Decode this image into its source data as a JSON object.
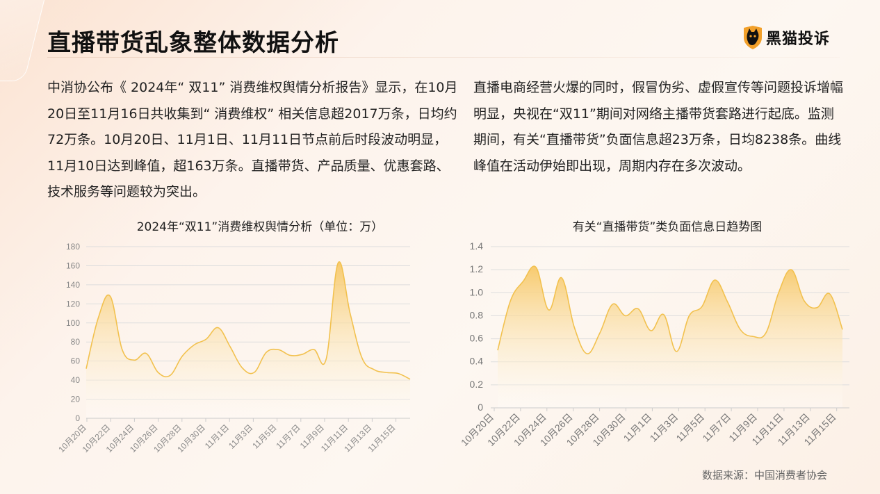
{
  "title": "直播带货乱象整体数据分析",
  "logo": {
    "text": "黑猫投诉",
    "icon": "black-cat-shield-icon"
  },
  "paragraph_left": "中消协公布《 2024年“ 双11” 消费维权舆情分析报告》显示，在10月20日至11月16日共收集到“ 消费维权” 相关信息超2017万条，日均约72万条。10月20日、11月1日、11月11日节点前后时段波动明显，11月10日达到峰值，超163万条。直播带货、产品质量、优惠套路、技术服务等问题较为突出。",
  "paragraph_right": "直播电商经营火爆的同时，假冒伪劣、虚假宣传等问题投诉增幅明显，央视在“双11”期间对网络主播带货套路进行起底。监测期间，有关“直播带货”负面信息超23万条，日均8238条。曲线峰值在活动伊始即出现，周期内存在多次波动。",
  "source": "数据来源：中国消费者协会",
  "colors": {
    "line": "#f2c14e",
    "fill_top": "#f7c867",
    "grid": "#dddddd",
    "title": "#111111"
  },
  "chart_data": [
    {
      "type": "area",
      "title": "2024年“双11”消费维权舆情分析（单位：万）",
      "xlabel": "",
      "ylabel": "",
      "ylim": [
        0,
        180
      ],
      "yticks": [
        0,
        20,
        40,
        60,
        80,
        100,
        120,
        140,
        160,
        180
      ],
      "xtick_labels": [
        "10月20日",
        "10月22日",
        "10月24日",
        "10月26日",
        "10月28日",
        "10月30日",
        "11月1日",
        "11月3日",
        "11月5日",
        "11月7日",
        "11月9日",
        "11月11日",
        "11月13日",
        "11月15日"
      ],
      "x": [
        "10月20日",
        "10月21日",
        "10月22日",
        "10月23日",
        "10月24日",
        "10月25日",
        "10月26日",
        "10月27日",
        "10月28日",
        "10月29日",
        "10月30日",
        "10月31日",
        "11月1日",
        "11月2日",
        "11月3日",
        "11月4日",
        "11月5日",
        "11月6日",
        "11月7日",
        "11月8日",
        "11月9日",
        "11月10日",
        "11月11日",
        "11月12日",
        "11月13日",
        "11月14日",
        "11月15日",
        "11月16日"
      ],
      "values": [
        52,
        105,
        128,
        72,
        61,
        68,
        48,
        45,
        65,
        77,
        83,
        95,
        75,
        53,
        48,
        69,
        72,
        66,
        67,
        72,
        62,
        163,
        110,
        63,
        51,
        48,
        47,
        41
      ],
      "grid": true
    },
    {
      "type": "area",
      "title": "有关“直播带货”类负面信息日趋势图",
      "xlabel": "",
      "ylabel": "",
      "ylim": [
        0,
        1.4
      ],
      "yticks": [
        "0",
        "0.2",
        "0.4",
        "0.6",
        "0.8",
        "1.0",
        "1.2",
        "1.4"
      ],
      "xtick_labels": [
        "10月20日",
        "10月22日",
        "10月24日",
        "10月26日",
        "10月28日",
        "10月30日",
        "11月1日",
        "11月3日",
        "11月5日",
        "11月7日",
        "11月9日",
        "11月11日",
        "11月13日",
        "11月15日"
      ],
      "x": [
        "10月20日",
        "10月21日",
        "10月22日",
        "10月23日",
        "10月24日",
        "10月25日",
        "10月26日",
        "10月27日",
        "10月28日",
        "10月29日",
        "10月30日",
        "10月31日",
        "11月1日",
        "11月2日",
        "11月3日",
        "11月4日",
        "11月5日",
        "11月6日",
        "11月7日",
        "11月8日",
        "11月9日",
        "11月10日",
        "11月11日",
        "11月12日",
        "11月13日",
        "11月14日",
        "11月15日",
        "11月16日"
      ],
      "values": [
        0.5,
        0.93,
        1.1,
        1.22,
        0.85,
        1.13,
        0.7,
        0.47,
        0.65,
        0.9,
        0.8,
        0.86,
        0.67,
        0.81,
        0.49,
        0.8,
        0.88,
        1.11,
        0.92,
        0.68,
        0.62,
        0.65,
        1.0,
        1.2,
        0.93,
        0.87,
        0.99,
        0.68
      ],
      "grid": true
    }
  ]
}
